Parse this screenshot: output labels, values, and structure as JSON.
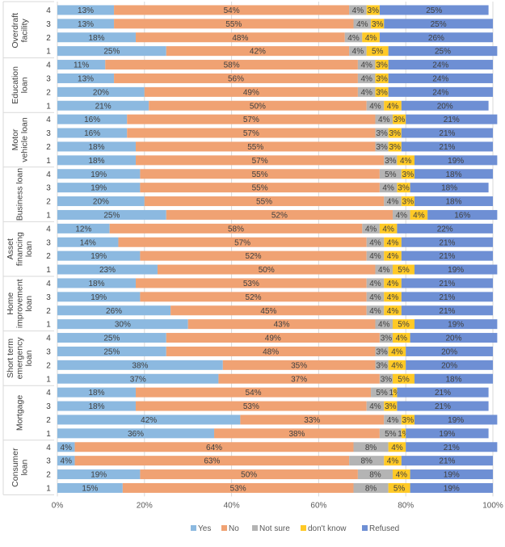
{
  "chart_data": {
    "type": "bar",
    "orientation": "horizontal",
    "stacked": "percent",
    "xlim": [
      0,
      100
    ],
    "x_ticks": [
      "0%",
      "20%",
      "40%",
      "60%",
      "80%",
      "100%"
    ],
    "legend_position": "bottom",
    "grid": true,
    "series": [
      {
        "name": "Yes",
        "color": "#8cb9e0"
      },
      {
        "name": "No",
        "color": "#f0a273"
      },
      {
        "name": "Not sure",
        "color": "#b4b4b4"
      },
      {
        "name": "don't know",
        "color": "#ffc926"
      },
      {
        "name": "Refused",
        "color": "#6e8fd4"
      }
    ],
    "groups": [
      {
        "name": "Overdraft facility",
        "lines": [
          "Overdraft",
          "facility"
        ],
        "rows": [
          {
            "label": "4",
            "values": [
              13,
              54,
              4,
              3,
              25
            ]
          },
          {
            "label": "3",
            "values": [
              13,
              55,
              4,
              3,
              25
            ]
          },
          {
            "label": "2",
            "values": [
              18,
              48,
              4,
              4,
              26
            ]
          },
          {
            "label": "1",
            "values": [
              25,
              42,
              4,
              5,
              25
            ]
          }
        ]
      },
      {
        "name": "Education loan",
        "lines": [
          "Education",
          "loan"
        ],
        "rows": [
          {
            "label": "4",
            "values": [
              11,
              58,
              4,
              3,
              24
            ]
          },
          {
            "label": "3",
            "values": [
              13,
              56,
              4,
              3,
              24
            ]
          },
          {
            "label": "2",
            "values": [
              20,
              49,
              4,
              3,
              24
            ]
          },
          {
            "label": "1",
            "values": [
              21,
              50,
              4,
              4,
              20
            ]
          }
        ]
      },
      {
        "name": "Motor vehicle loan",
        "lines": [
          "Motor",
          "vehicle loan"
        ],
        "rows": [
          {
            "label": "4",
            "values": [
              16,
              57,
              4,
              3,
              21
            ]
          },
          {
            "label": "3",
            "values": [
              16,
              57,
              3,
              3,
              21
            ]
          },
          {
            "label": "2",
            "values": [
              18,
              55,
              3,
              3,
              21
            ]
          },
          {
            "label": "1",
            "values": [
              18,
              57,
              3,
              4,
              19
            ]
          }
        ]
      },
      {
        "name": "Business loan",
        "lines": [
          "Business loan"
        ],
        "rows": [
          {
            "label": "4",
            "values": [
              19,
              55,
              5,
              3,
              18
            ]
          },
          {
            "label": "3",
            "values": [
              19,
              55,
              4,
              3,
              18
            ]
          },
          {
            "label": "2",
            "values": [
              20,
              55,
              4,
              3,
              18
            ]
          },
          {
            "label": "1",
            "values": [
              25,
              52,
              4,
              4,
              16
            ]
          }
        ]
      },
      {
        "name": "Asset financing loan",
        "lines": [
          "Asset",
          "financing",
          "loan"
        ],
        "rows": [
          {
            "label": "4",
            "values": [
              12,
              58,
              4,
              4,
              22
            ]
          },
          {
            "label": "3",
            "values": [
              14,
              57,
              4,
              4,
              21
            ]
          },
          {
            "label": "2",
            "values": [
              19,
              52,
              4,
              4,
              21
            ]
          },
          {
            "label": "1",
            "values": [
              23,
              50,
              4,
              5,
              19
            ]
          }
        ]
      },
      {
        "name": "Home improvement loan",
        "lines": [
          "Home",
          "improvement",
          "loan"
        ],
        "rows": [
          {
            "label": "4",
            "values": [
              18,
              53,
              4,
              4,
              21
            ]
          },
          {
            "label": "3",
            "values": [
              19,
              52,
              4,
              4,
              21
            ]
          },
          {
            "label": "2",
            "values": [
              26,
              45,
              4,
              4,
              21
            ]
          },
          {
            "label": "1",
            "values": [
              30,
              43,
              4,
              5,
              19
            ]
          }
        ]
      },
      {
        "name": "Short term emergency loan",
        "lines": [
          "Short term",
          "emergency",
          "loan"
        ],
        "rows": [
          {
            "label": "4",
            "values": [
              25,
              49,
              3,
              4,
              20
            ]
          },
          {
            "label": "3",
            "values": [
              25,
              48,
              3,
              4,
              20
            ]
          },
          {
            "label": "2",
            "values": [
              38,
              35,
              3,
              4,
              20
            ]
          },
          {
            "label": "1",
            "values": [
              37,
              37,
              3,
              5,
              18
            ]
          }
        ]
      },
      {
        "name": "Mortgage",
        "lines": [
          "Mortgage"
        ],
        "rows": [
          {
            "label": "4",
            "values": [
              18,
              54,
              5,
              1,
              21
            ]
          },
          {
            "label": "3",
            "values": [
              18,
              53,
              4,
              3,
              21
            ]
          },
          {
            "label": "2",
            "values": [
              42,
              33,
              4,
              3,
              19
            ]
          },
          {
            "label": "1",
            "values": [
              36,
              38,
              5,
              1,
              19
            ]
          }
        ]
      },
      {
        "name": "Consumer loan",
        "lines": [
          "Consumer",
          "loan"
        ],
        "rows": [
          {
            "label": "4",
            "values": [
              4,
              64,
              8,
              4,
              21
            ]
          },
          {
            "label": "3",
            "values": [
              4,
              63,
              8,
              4,
              21
            ]
          },
          {
            "label": "2",
            "values": [
              19,
              50,
              8,
              4,
              19
            ]
          },
          {
            "label": "1",
            "values": [
              15,
              53,
              8,
              5,
              19
            ]
          }
        ]
      }
    ]
  }
}
